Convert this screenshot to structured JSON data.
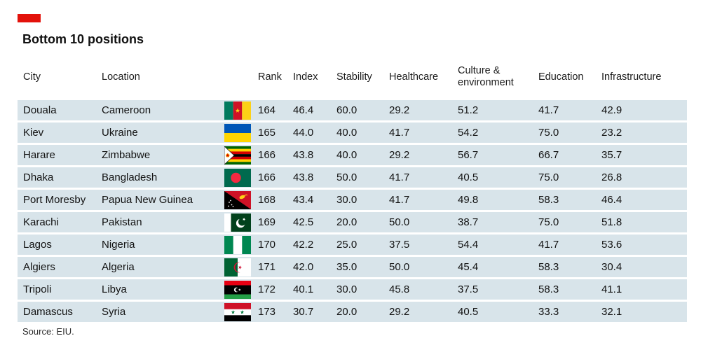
{
  "accent_color": "#e3120b",
  "title": "Bottom 10 positions",
  "source": "Source: EIU.",
  "chart_data": {
    "type": "table",
    "title": "Bottom 10 positions",
    "columns": [
      "City",
      "Location",
      "Rank",
      "Index",
      "Stability",
      "Healthcare",
      "Culture & environment",
      "Education",
      "Infrastructure"
    ],
    "rows": [
      {
        "city": "Douala",
        "location": "Cameroon",
        "flag": "cameroon",
        "rank": "164",
        "index": "46.4",
        "stability": "60.0",
        "healthcare": "29.2",
        "culture_environment": "51.2",
        "education": "41.7",
        "infrastructure": "42.9"
      },
      {
        "city": "Kiev",
        "location": "Ukraine",
        "flag": "ukraine",
        "rank": "165",
        "index": "44.0",
        "stability": "40.0",
        "healthcare": "41.7",
        "culture_environment": "54.2",
        "education": "75.0",
        "infrastructure": "23.2"
      },
      {
        "city": "Harare",
        "location": "Zimbabwe",
        "flag": "zimbabwe",
        "rank": "166",
        "index": "43.8",
        "stability": "40.0",
        "healthcare": "29.2",
        "culture_environment": "56.7",
        "education": "66.7",
        "infrastructure": "35.7"
      },
      {
        "city": "Dhaka",
        "location": "Bangladesh",
        "flag": "bangladesh",
        "rank": "166",
        "index": "43.8",
        "stability": "50.0",
        "healthcare": "41.7",
        "culture_environment": "40.5",
        "education": "75.0",
        "infrastructure": "26.8"
      },
      {
        "city": "Port Moresby",
        "location": "Papua New Guinea",
        "flag": "papua_new_guinea",
        "rank": "168",
        "index": "43.4",
        "stability": "30.0",
        "healthcare": "41.7",
        "culture_environment": "49.8",
        "education": "58.3",
        "infrastructure": "46.4"
      },
      {
        "city": "Karachi",
        "location": "Pakistan",
        "flag": "pakistan",
        "rank": "169",
        "index": "42.5",
        "stability": "20.0",
        "healthcare": "50.0",
        "culture_environment": "38.7",
        "education": "75.0",
        "infrastructure": "51.8"
      },
      {
        "city": "Lagos",
        "location": "Nigeria",
        "flag": "nigeria",
        "rank": "170",
        "index": "42.2",
        "stability": "25.0",
        "healthcare": "37.5",
        "culture_environment": "54.4",
        "education": "41.7",
        "infrastructure": "53.6"
      },
      {
        "city": "Algiers",
        "location": "Algeria",
        "flag": "algeria",
        "rank": "171",
        "index": "42.0",
        "stability": "35.0",
        "healthcare": "50.0",
        "culture_environment": "45.4",
        "education": "58.3",
        "infrastructure": "30.4"
      },
      {
        "city": "Tripoli",
        "location": "Libya",
        "flag": "libya",
        "rank": "172",
        "index": "40.1",
        "stability": "30.0",
        "healthcare": "45.8",
        "culture_environment": "37.5",
        "education": "58.3",
        "infrastructure": "41.1"
      },
      {
        "city": "Damascus",
        "location": "Syria",
        "flag": "syria",
        "rank": "173",
        "index": "30.7",
        "stability": "20.0",
        "healthcare": "29.2",
        "culture_environment": "40.5",
        "education": "33.3",
        "infrastructure": "32.1"
      }
    ],
    "source": "Source: EIU."
  }
}
